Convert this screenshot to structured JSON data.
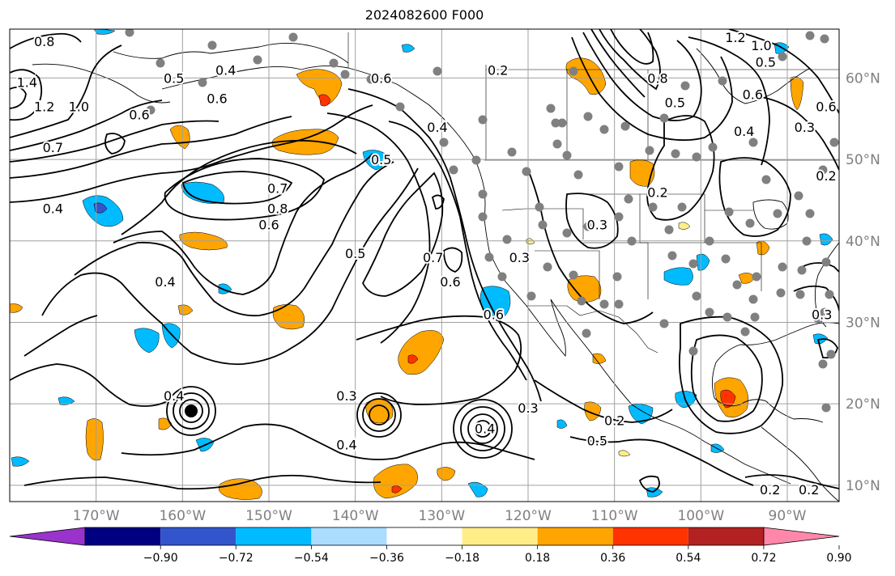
{
  "title": "2024082600 F000",
  "map": {
    "lon_range": [
      -180,
      -84
    ],
    "lat_range": [
      8,
      66
    ],
    "projection": "plate-carree",
    "lon_ticks": [
      {
        "value": -170,
        "label": "170°W"
      },
      {
        "value": -160,
        "label": "160°W"
      },
      {
        "value": -150,
        "label": "150°W"
      },
      {
        "value": -140,
        "label": "140°W"
      },
      {
        "value": -130,
        "label": "130°W"
      },
      {
        "value": -120,
        "label": "120°W"
      },
      {
        "value": -110,
        "label": "110°W"
      },
      {
        "value": -100,
        "label": "100°W"
      },
      {
        "value": -90,
        "label": "90°W"
      }
    ],
    "lat_ticks": [
      {
        "value": 60,
        "label": "60°N"
      },
      {
        "value": 50,
        "label": "50°N"
      },
      {
        "value": 40,
        "label": "40°N"
      },
      {
        "value": 30,
        "label": "30°N"
      },
      {
        "value": 20,
        "label": "20°N"
      },
      {
        "value": 10,
        "label": "10°N"
      }
    ],
    "grid": true
  },
  "colorbar": {
    "ticks": [
      "−0.90",
      "−0.72",
      "−0.54",
      "−0.36",
      "−0.18",
      "0.18",
      "0.36",
      "0.54",
      "0.72",
      "0.90"
    ],
    "colors": [
      "#9933cc",
      "#000080",
      "#3355cc",
      "#00bbff",
      "#aaddff",
      "#ffffff",
      "#ffee88",
      "#ffa500",
      "#ff3300",
      "#b22222",
      "#ff88aa"
    ]
  },
  "fill_colors": {
    "orange": "#ffa500",
    "yellow": "#ffee88",
    "red": "#ff3300",
    "cyan": "#00bbff",
    "blue": "#3355cc",
    "lightblue": "#aaddff"
  },
  "contour_labels": [
    {
      "text": "0.8",
      "lon": -176,
      "lat": 64.5
    },
    {
      "text": "1.4",
      "lon": -178,
      "lat": 59.5
    },
    {
      "text": "1.2",
      "lon": -176,
      "lat": 56.5
    },
    {
      "text": "1.0",
      "lon": -172,
      "lat": 56.5
    },
    {
      "text": "0.7",
      "lon": -175,
      "lat": 51.5
    },
    {
      "text": "0.6",
      "lon": -165,
      "lat": 55.5
    },
    {
      "text": "0.5",
      "lon": -161,
      "lat": 60
    },
    {
      "text": "0.6",
      "lon": -156,
      "lat": 57.5
    },
    {
      "text": "0.4",
      "lon": -155,
      "lat": 61
    },
    {
      "text": "0.6",
      "lon": -137,
      "lat": 60
    },
    {
      "text": "0.5",
      "lon": -137,
      "lat": 50
    },
    {
      "text": "0.7",
      "lon": -149,
      "lat": 46.5
    },
    {
      "text": "0.8",
      "lon": -149,
      "lat": 44
    },
    {
      "text": "0.6",
      "lon": -150,
      "lat": 42
    },
    {
      "text": "0.4",
      "lon": -175,
      "lat": 44
    },
    {
      "text": "0.4",
      "lon": -162,
      "lat": 35
    },
    {
      "text": "0.5",
      "lon": -140,
      "lat": 38.5
    },
    {
      "text": "0.7",
      "lon": -131,
      "lat": 38
    },
    {
      "text": "0.6",
      "lon": -129,
      "lat": 35
    },
    {
      "text": "0.6",
      "lon": -124,
      "lat": 31
    },
    {
      "text": "0.4",
      "lon": -130.5,
      "lat": 54
    },
    {
      "text": "0.2",
      "lon": -123.5,
      "lat": 61
    },
    {
      "text": "0.3",
      "lon": -121,
      "lat": 38
    },
    {
      "text": "0.3",
      "lon": -112,
      "lat": 42
    },
    {
      "text": "0.3",
      "lon": -141,
      "lat": 21
    },
    {
      "text": "0.4",
      "lon": -141,
      "lat": 15
    },
    {
      "text": "0.3",
      "lon": -120,
      "lat": 19.5
    },
    {
      "text": "0.2",
      "lon": -110,
      "lat": 18
    },
    {
      "text": "0.4",
      "lon": -125,
      "lat": 17
    },
    {
      "text": "0.5",
      "lon": -103,
      "lat": 57
    },
    {
      "text": "0.8",
      "lon": -105,
      "lat": 60
    },
    {
      "text": "0.6",
      "lon": -94,
      "lat": 58
    },
    {
      "text": "0.4",
      "lon": -95,
      "lat": 53.5
    },
    {
      "text": "0.3",
      "lon": -88,
      "lat": 54
    },
    {
      "text": "0.6",
      "lon": -85.5,
      "lat": 56.5
    },
    {
      "text": "0.2",
      "lon": -85.5,
      "lat": 48
    },
    {
      "text": "1.0",
      "lon": -93,
      "lat": 64
    },
    {
      "text": "1.2",
      "lon": -96,
      "lat": 65
    },
    {
      "text": "0.5",
      "lon": -92.5,
      "lat": 62
    },
    {
      "text": "0.2",
      "lon": -105,
      "lat": 46
    },
    {
      "text": "0.3",
      "lon": -86,
      "lat": 31
    },
    {
      "text": "0.2",
      "lon": -92,
      "lat": 9.5
    },
    {
      "text": "0.2",
      "lon": -87.5,
      "lat": 9.5
    },
    {
      "text": "0.4",
      "lon": -161,
      "lat": 21
    },
    {
      "text": "0.5",
      "lon": -112,
      "lat": 15.5
    }
  ]
}
